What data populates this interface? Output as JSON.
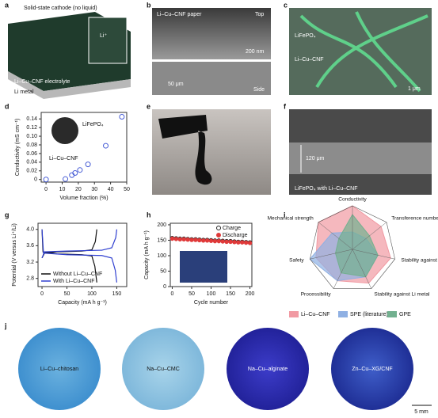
{
  "images": [
    {
      "label": "a",
      "texts": [
        "Solid-state cathode (no liquid)",
        "Li⁺",
        "Li–Cu–CNF electrolyte",
        "Li metal"
      ]
    },
    {
      "label": "b",
      "texts": [
        "Li–Cu–CNF paper",
        "Top",
        "200 nm",
        "50 μm",
        "Side"
      ]
    },
    {
      "label": "c",
      "texts": [
        "LiFePO₄",
        "Li–Cu–CNF",
        "1 μm"
      ]
    },
    {
      "label": "e",
      "texts": []
    },
    {
      "label": "f",
      "texts": [
        "120 μm",
        "LiFePO₄ with Li–Cu–CNF"
      ]
    },
    {
      "label": "j",
      "samples": [
        "Li–Cu–chitosan",
        "Na–Cu–CMC",
        "Na–Cu–alginate",
        "Zn–Cu–XG/CNF"
      ],
      "scale_bar": "5 mm"
    }
  ],
  "chart_data": [
    {
      "type": "scatter",
      "label": "d",
      "x_label": "Volume fraction (%)",
      "y_label": "Conductivity (mS cm⁻¹)",
      "annotations": [
        "LiFePO₄",
        "Li–Cu–CNF"
      ],
      "x": [
        0,
        12,
        16,
        18,
        21,
        26,
        37,
        47
      ],
      "values": [
        0,
        0.001,
        0.01,
        0.015,
        0.022,
        0.035,
        0.078,
        0.145
      ],
      "color": "#4a5fd6",
      "xlim": [
        -3,
        50
      ],
      "ylim": [
        -0.006,
        0.155
      ],
      "xticks": [
        0,
        10,
        20,
        30,
        40,
        50
      ],
      "yticks": [
        0,
        0.02,
        0.04,
        0.06,
        0.08,
        {
          "value": 0.1,
          "label": "0.10"
        },
        0.12,
        0.14
      ]
    },
    {
      "type": "line",
      "label": "g",
      "x_label": "Capacity (mA h g⁻¹)",
      "y_label": "Potential (V versus Li⁺/Li)",
      "series": [
        {
          "name": "Without Li–Cu–CNF",
          "color": "#111111",
          "x": [
            0,
            5,
            30,
            80,
            100,
            107,
            110,
            null,
            0,
            2,
            30,
            80,
            100,
            106,
            110
          ],
          "values": [
            3.3,
            3.42,
            3.45,
            3.47,
            3.5,
            3.7,
            4.0,
            null,
            4.0,
            3.45,
            3.4,
            3.38,
            3.35,
            3.1,
            2.7
          ]
        },
        {
          "name": "With Li–Cu–CNF",
          "color": "#3040d0",
          "x": [
            0,
            5,
            50,
            120,
            140,
            148,
            150,
            null,
            0,
            3,
            50,
            120,
            140,
            147,
            150
          ],
          "values": [
            3.3,
            3.45,
            3.47,
            3.49,
            3.55,
            3.8,
            4.0,
            null,
            4.0,
            3.42,
            3.38,
            3.36,
            3.3,
            3.0,
            2.7
          ]
        }
      ],
      "xlim": [
        -8,
        170
      ],
      "ylim": [
        2.6,
        4.15
      ],
      "xticks": [
        0,
        50,
        100,
        150
      ],
      "yticks": [
        2.8,
        3.2,
        3.6,
        {
          "value": 4,
          "label": "4.0"
        }
      ],
      "legend": "lower-left"
    },
    {
      "type": "scatter",
      "label": "h",
      "x_label": "Cycle number",
      "y_label": "Capacity (mA h g⁻¹)",
      "x": [
        0,
        10,
        20,
        30,
        40,
        50,
        60,
        70,
        80,
        90,
        100,
        110,
        120,
        130,
        140,
        150,
        160,
        170,
        180,
        190,
        200
      ],
      "series": [
        {
          "name": "Charge",
          "color": "#222222",
          "values": [
            157,
            156,
            155,
            155,
            154,
            153,
            153,
            152,
            151,
            151,
            150,
            149,
            149,
            148,
            147,
            147,
            146,
            145,
            145,
            144,
            143
          ]
        },
        {
          "name": "Discharge",
          "color": "#e03a3a",
          "values": [
            155,
            154,
            153,
            153,
            152,
            151,
            151,
            150,
            149,
            149,
            148,
            147,
            147,
            146,
            145,
            145,
            144,
            143,
            143,
            142,
            141
          ]
        }
      ],
      "xlim": [
        -5,
        205
      ],
      "ylim": [
        0,
        205
      ],
      "xticks": [
        0,
        50,
        100,
        150,
        200
      ],
      "yticks": [
        0,
        50,
        100,
        150,
        200
      ],
      "legend": "upper-right"
    },
    {
      "type": "radar",
      "label": "i",
      "axes": [
        "Conductivity",
        "Transference number",
        "Stability against cathode",
        "Stability against Li metal",
        "Processibility",
        "Safety",
        "Mechanical strength"
      ],
      "rlim": [
        0,
        5
      ],
      "series": [
        {
          "name": "Li–Cu–CNF",
          "color": "#f19aa3",
          "values": [
            5,
            4.2,
            4.5,
            4.3,
            4,
            4.3,
            5
          ]
        },
        {
          "name": "SPE (literature)",
          "color": "#8fb0e3",
          "values": [
            2,
            2,
            3,
            3.5,
            4,
            5,
            3
          ]
        },
        {
          "name": "GPE",
          "color": "#72b08f",
          "values": [
            4,
            2.5,
            3,
            3.5,
            3,
            2,
            2
          ]
        }
      ]
    }
  ]
}
